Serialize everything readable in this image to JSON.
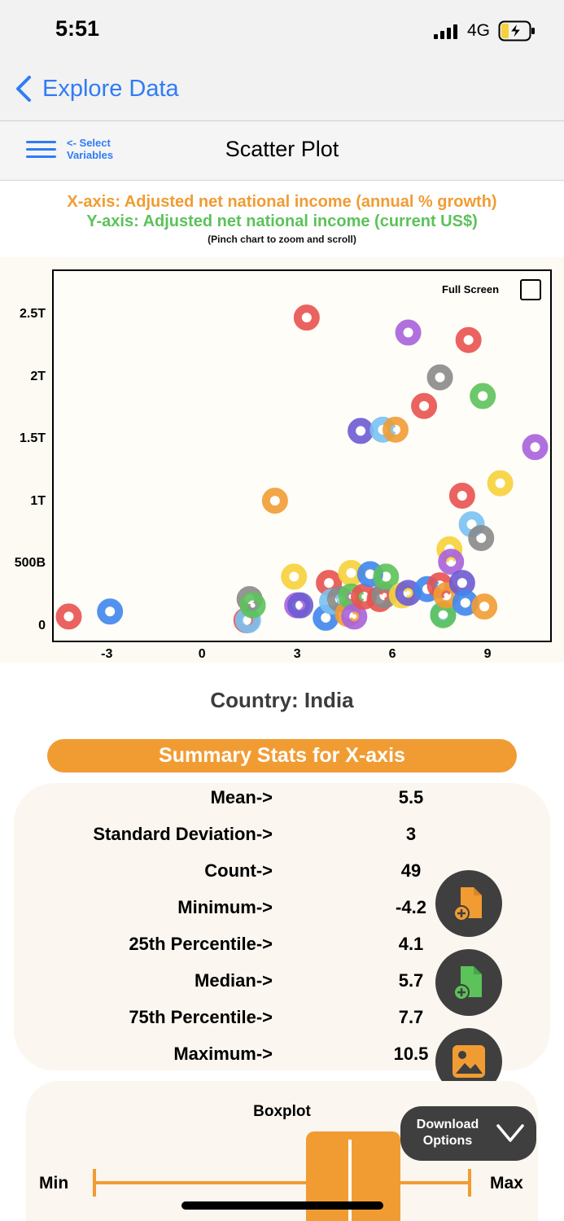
{
  "status_bar": {
    "time": "5:51",
    "network": "4G"
  },
  "nav": {
    "back_label": "Explore Data"
  },
  "toolbar": {
    "select_variables_label": "<- Select\nVariables",
    "title": "Scatter Plot"
  },
  "chart_header": {
    "x_axis_label": "X-axis: Adjusted net national income (annual % growth)",
    "y_axis_label": "Y-axis: Adjusted net national income (current US$)",
    "hint": "(Pinch chart to zoom and scroll)"
  },
  "full_screen": {
    "label": "Full Screen",
    "checked": false
  },
  "chart_data": {
    "type": "scatter",
    "xlim": [
      -4.7,
      11
    ],
    "ylim": [
      -0.12,
      2.86
    ],
    "y_unit": "trillion US$",
    "x_ticks": [
      {
        "v": -3,
        "label": "-3"
      },
      {
        "v": 0,
        "label": "0"
      },
      {
        "v": 3,
        "label": "3"
      },
      {
        "v": 6,
        "label": "6"
      },
      {
        "v": 9,
        "label": "9"
      }
    ],
    "y_ticks": [
      {
        "v": 0,
        "label": "0"
      },
      {
        "v": 0.5,
        "label": "500B"
      },
      {
        "v": 1,
        "label": "1T"
      },
      {
        "v": 1.5,
        "label": "1.5T"
      },
      {
        "v": 2,
        "label": "2T"
      },
      {
        "v": 2.5,
        "label": "2.5T"
      }
    ],
    "grid": false,
    "points": [
      {
        "x": -4.2,
        "y": 0.08,
        "color": "#e8524f"
      },
      {
        "x": -2.9,
        "y": 0.12,
        "color": "#3f86ec"
      },
      {
        "x": 1.4,
        "y": 0.05,
        "color": "#e8524f"
      },
      {
        "x": 1.45,
        "y": 0.05,
        "color": "#79c2f2"
      },
      {
        "x": 1.5,
        "y": 0.22,
        "color": "#8a8a8a"
      },
      {
        "x": 1.6,
        "y": 0.17,
        "color": "#5cc25a"
      },
      {
        "x": 2.3,
        "y": 1.01,
        "color": "#f19c33"
      },
      {
        "x": 2.9,
        "y": 0.4,
        "color": "#f6d23a"
      },
      {
        "x": 3.0,
        "y": 0.17,
        "color": "#a762dc"
      },
      {
        "x": 3.1,
        "y": 0.17,
        "color": "#6b5bd2"
      },
      {
        "x": 3.3,
        "y": 2.48,
        "color": "#e8524f"
      },
      {
        "x": 3.9,
        "y": 0.07,
        "color": "#3f86ec"
      },
      {
        "x": 4.0,
        "y": 0.35,
        "color": "#e8524f"
      },
      {
        "x": 4.1,
        "y": 0.2,
        "color": "#79c2f2"
      },
      {
        "x": 4.35,
        "y": 0.22,
        "color": "#8a8a8a"
      },
      {
        "x": 4.6,
        "y": 0.1,
        "color": "#f19c33"
      },
      {
        "x": 4.7,
        "y": 0.43,
        "color": "#f6d23a"
      },
      {
        "x": 4.7,
        "y": 0.24,
        "color": "#5cc25a"
      },
      {
        "x": 4.8,
        "y": 0.08,
        "color": "#a762dc"
      },
      {
        "x": 5.0,
        "y": 1.57,
        "color": "#6b5bd2"
      },
      {
        "x": 5.1,
        "y": 0.24,
        "color": "#e8524f"
      },
      {
        "x": 5.3,
        "y": 0.42,
        "color": "#3f86ec"
      },
      {
        "x": 5.6,
        "y": 0.22,
        "color": "#e8524f"
      },
      {
        "x": 5.7,
        "y": 1.58,
        "color": "#79c2f2"
      },
      {
        "x": 5.75,
        "y": 0.25,
        "color": "#8a8a8a"
      },
      {
        "x": 5.8,
        "y": 0.4,
        "color": "#5cc25a"
      },
      {
        "x": 6.1,
        "y": 1.58,
        "color": "#f19c33"
      },
      {
        "x": 6.3,
        "y": 0.25,
        "color": "#f6d23a"
      },
      {
        "x": 6.5,
        "y": 0.27,
        "color": "#6b5bd2"
      },
      {
        "x": 6.5,
        "y": 2.36,
        "color": "#a762dc"
      },
      {
        "x": 7.0,
        "y": 1.77,
        "color": "#e8524f"
      },
      {
        "x": 7.1,
        "y": 0.3,
        "color": "#3f86ec"
      },
      {
        "x": 7.5,
        "y": 0.33,
        "color": "#e8524f"
      },
      {
        "x": 7.6,
        "y": 0.1,
        "color": "#79c2f2"
      },
      {
        "x": 7.6,
        "y": 0.09,
        "color": "#5cc25a"
      },
      {
        "x": 7.5,
        "y": 2.0,
        "color": "#8a8a8a"
      },
      {
        "x": 7.7,
        "y": 0.25,
        "color": "#f19c33"
      },
      {
        "x": 7.8,
        "y": 0.62,
        "color": "#f6d23a"
      },
      {
        "x": 7.85,
        "y": 0.52,
        "color": "#a762dc"
      },
      {
        "x": 8.2,
        "y": 1.05,
        "color": "#e8524f"
      },
      {
        "x": 8.2,
        "y": 0.35,
        "color": "#6b5bd2"
      },
      {
        "x": 8.3,
        "y": 0.19,
        "color": "#3f86ec"
      },
      {
        "x": 8.4,
        "y": 2.3,
        "color": "#e8524f"
      },
      {
        "x": 8.5,
        "y": 0.82,
        "color": "#79c2f2"
      },
      {
        "x": 8.8,
        "y": 0.71,
        "color": "#8a8a8a"
      },
      {
        "x": 8.85,
        "y": 1.85,
        "color": "#5cc25a"
      },
      {
        "x": 8.9,
        "y": 0.16,
        "color": "#f19c33"
      },
      {
        "x": 9.4,
        "y": 1.15,
        "color": "#f6d23a"
      },
      {
        "x": 10.5,
        "y": 1.44,
        "color": "#a762dc"
      }
    ]
  },
  "country_label": "Country: India",
  "summary": {
    "title": "Summary Stats for X-axis",
    "rows": [
      {
        "label": "Mean->",
        "value": "5.5"
      },
      {
        "label": "Standard Deviation->",
        "value": "3"
      },
      {
        "label": "Count->",
        "value": "49"
      },
      {
        "label": "Minimum->",
        "value": "-4.2"
      },
      {
        "label": "25th Percentile->",
        "value": "4.1"
      },
      {
        "label": "Median->",
        "value": "5.7"
      },
      {
        "label": "75th Percentile->",
        "value": "7.7"
      },
      {
        "label": "Maximum->",
        "value": "10.5"
      }
    ]
  },
  "boxplot": {
    "title": "Boxplot",
    "min_label": "Min",
    "max_label": "Max"
  },
  "download": {
    "label": "Download\nOptions"
  },
  "colors": {
    "accent_blue": "#2f7cf6",
    "orange": "#f19c33",
    "green": "#5cc25a",
    "dark_button": "#3f3f3f"
  },
  "icons": [
    "chevron-left-icon",
    "hamburger-menu-icon",
    "pdf-add-icon",
    "excel-add-icon",
    "image-icon",
    "chevron-down-icon"
  ]
}
